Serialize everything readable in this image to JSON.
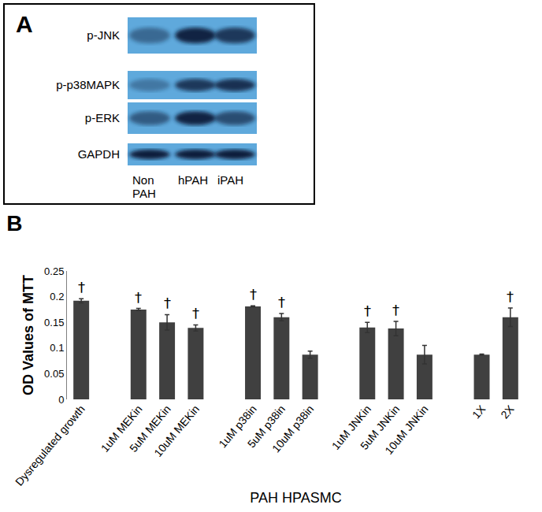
{
  "blot": {
    "label": "A",
    "rows": [
      "p-JNK",
      "p-p38MAPK",
      "p-ERK",
      "GAPDH"
    ],
    "lanes": [
      "Non PAH",
      "hPAH",
      "iPAH"
    ]
  },
  "chart_data": {
    "type": "bar",
    "title": "B",
    "x_label": "PAH HPASMC",
    "y_label": "OD Values of MTT",
    "categories": [
      "Dysregulated growth",
      null,
      "1uM MEKin",
      "5uM MEKin",
      "10uM MEKin",
      null,
      "1uM p38in",
      "5uM p38in",
      "10uM p38in",
      null,
      "1uM JNKin",
      "5uM JNKin",
      "10uM JNKin",
      null,
      "1X",
      "2X"
    ],
    "values": [
      0.192,
      null,
      0.175,
      0.15,
      0.139,
      null,
      0.181,
      0.16,
      0.087,
      null,
      0.14,
      0.138,
      0.087,
      null,
      0.087,
      0.16
    ],
    "errors": [
      0.004,
      null,
      0.002,
      0.015,
      0.006,
      null,
      0.001,
      0.007,
      0.007,
      null,
      0.01,
      0.014,
      0.018,
      null,
      0.001,
      0.018
    ],
    "annotations": [
      "†",
      null,
      "†",
      "†",
      "†",
      null,
      "†",
      "†",
      null,
      null,
      "†",
      "†",
      null,
      null,
      null,
      "†"
    ],
    "color": "#404040",
    "ylim": [
      0,
      0.25
    ],
    "yticks": [
      0,
      0.05,
      0.1,
      0.15,
      0.2,
      0.25
    ],
    "grid": false
  }
}
